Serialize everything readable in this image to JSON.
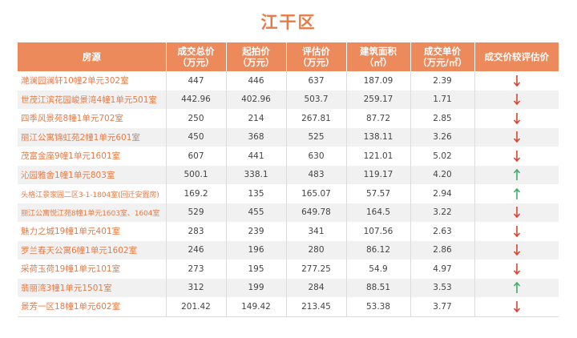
{
  "title": "江干区",
  "headers": {
    "name": "房源",
    "total_price": "成交总价",
    "total_price_unit": "（万元）",
    "start_price": "起拍价",
    "start_price_unit": "（万元）",
    "eval_price": "评估价",
    "eval_price_unit": "（万元）",
    "area": "建筑面积",
    "area_unit": "（㎡）",
    "unit_price": "成交单价",
    "unit_price_unit": "（万元/㎡）",
    "compare": "成交价较评估价"
  },
  "colors": {
    "accent": "#ec8a5c",
    "down": "#d9432f",
    "up": "#3fae6a"
  },
  "rows": [
    {
      "name": "滟澜园澜轩10幢2单元302室",
      "total": "447",
      "start": "446",
      "eval": "637",
      "area": "187.09",
      "unit": "2.39",
      "trend": "down"
    },
    {
      "name": "世茂江滨花园峻景湾4幢1单元501室",
      "total": "442.96",
      "start": "402.96",
      "eval": "503.7",
      "area": "259.17",
      "unit": "1.71",
      "trend": "down"
    },
    {
      "name": "四季风景苑8幢1单元702室",
      "total": "250",
      "start": "214",
      "eval": "267.81",
      "area": "87.72",
      "unit": "2.85",
      "trend": "down"
    },
    {
      "name": "丽江公寓锦虹苑2幢1单元601室",
      "total": "450",
      "start": "368",
      "eval": "525",
      "area": "138.11",
      "unit": "3.26",
      "trend": "down"
    },
    {
      "name": "茂富金座9幢1单元1601室",
      "total": "607",
      "start": "441",
      "eval": "630",
      "area": "121.01",
      "unit": "5.02",
      "trend": "down"
    },
    {
      "name": "沁园雅舍1幢1单元803室",
      "total": "500.1",
      "start": "338.1",
      "eval": "483",
      "area": "119.17",
      "unit": "4.20",
      "trend": "up"
    },
    {
      "name": "头格江景家园二区3-1-1804室(回迁安置房)",
      "total": "169.2",
      "start": "135",
      "eval": "165.07",
      "area": "57.57",
      "unit": "2.94",
      "trend": "up",
      "small": true
    },
    {
      "name": "丽江公寓悦江苑8幢1单元1603室、1604室",
      "total": "529",
      "start": "455",
      "eval": "649.78",
      "area": "164.5",
      "unit": "3.22",
      "trend": "down",
      "small": true
    },
    {
      "name": "魅力之城19幢1单元401室",
      "total": "283",
      "start": "239",
      "eval": "341",
      "area": "107.56",
      "unit": "2.63",
      "trend": "down"
    },
    {
      "name": "罗兰春天公寓6幢1单元1602室",
      "total": "246",
      "start": "196",
      "eval": "280",
      "area": "86.12",
      "unit": "2.86",
      "trend": "down"
    },
    {
      "name": "采荷玉荷19幢1单元101室",
      "total": "273",
      "start": "195",
      "eval": "277.25",
      "area": "54.9",
      "unit": "4.97",
      "trend": "down"
    },
    {
      "name": "翡丽湾3幢1单元1501室",
      "total": "312",
      "start": "199",
      "eval": "284",
      "area": "88.51",
      "unit": "3.53",
      "trend": "up"
    },
    {
      "name": "景芳一区18幢1单元602室",
      "total": "201.42",
      "start": "149.42",
      "eval": "213.45",
      "area": "53.38",
      "unit": "3.77",
      "trend": "down"
    }
  ]
}
